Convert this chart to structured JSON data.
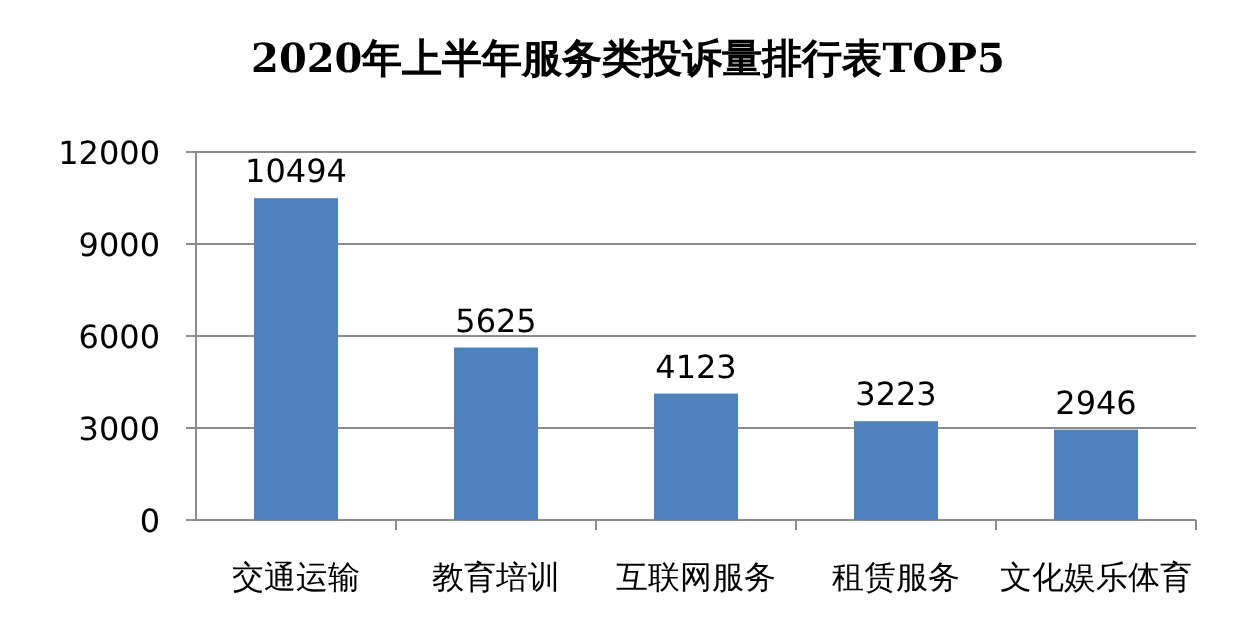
{
  "chart_data": {
    "type": "bar",
    "title": "2020年上半年服务类投诉量排行表TOP5",
    "categories": [
      "交通运输",
      "教育培训",
      "互联网服务",
      "租赁服务",
      "文化娱乐体育"
    ],
    "values": [
      10494,
      5625,
      4123,
      3223,
      2946
    ],
    "color": "#4f81bd",
    "ylim": [
      0,
      12000
    ],
    "yticks": [
      0,
      3000,
      6000,
      9000,
      12000
    ],
    "grid": "y",
    "data_labels": true
  }
}
